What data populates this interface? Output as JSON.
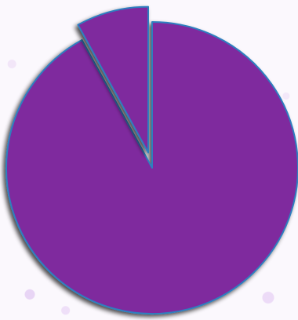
{
  "chart_data": {
    "type": "pie",
    "title": "",
    "slices": [
      {
        "value": 92,
        "color": "#7f2a9e",
        "exploded": false
      },
      {
        "value": 8,
        "color": "#7f2a9e",
        "exploded": true
      }
    ],
    "edge_color": "#2f7fbf",
    "legend": "none"
  }
}
